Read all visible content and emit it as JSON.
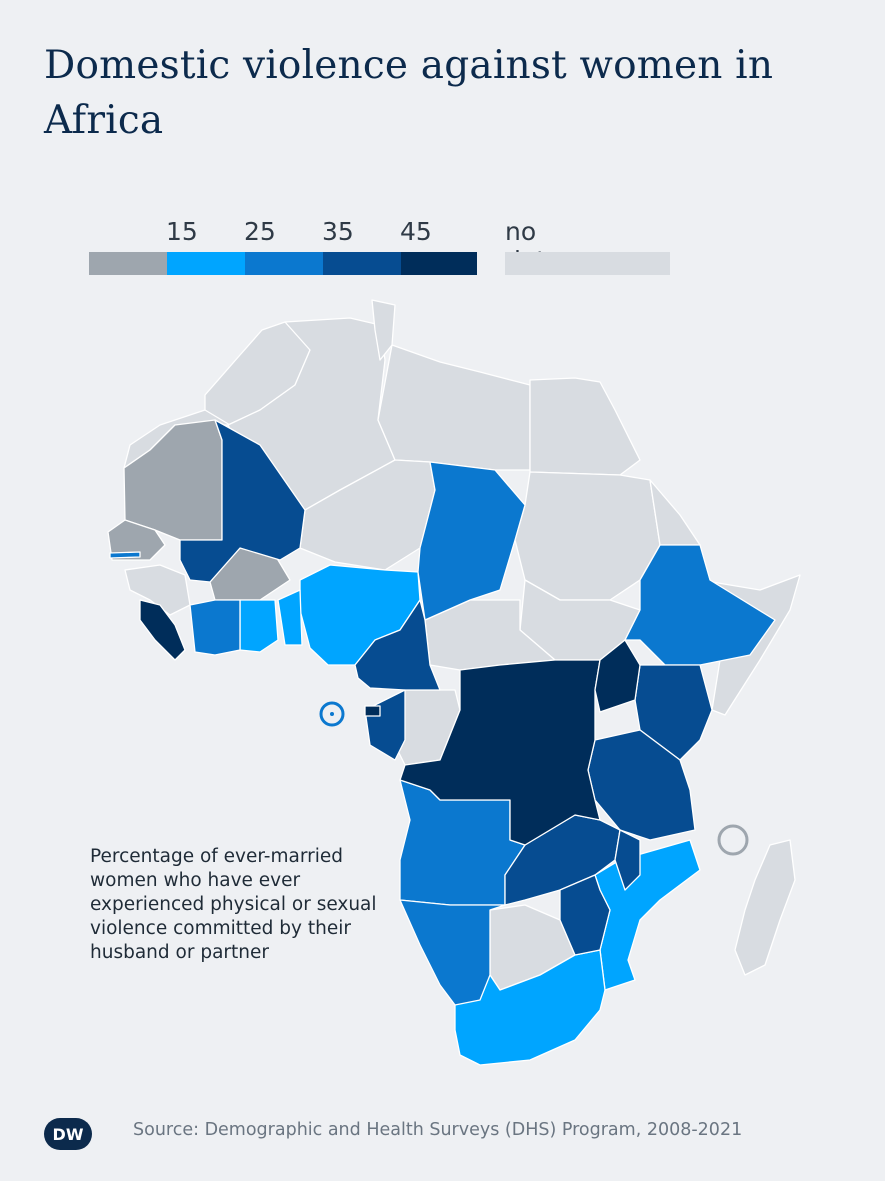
{
  "title": "Domestic violence against women in Africa",
  "legend": {
    "ticks": [
      "15",
      "25",
      "35",
      "45"
    ],
    "bins": [
      {
        "range": "<15",
        "color": "#9ea6ae"
      },
      {
        "range": "15-25",
        "color": "#00a5ff"
      },
      {
        "range": "25-35",
        "color": "#0b78cf"
      },
      {
        "range": "35-45",
        "color": "#064c91"
      },
      {
        "range": ">45",
        "color": "#002d5a"
      }
    ],
    "no_data_label": "no data",
    "no_data_color": "#d8dce1"
  },
  "description": "Percentage of ever-married women who have ever experienced physical or sexual violence committed by their husband or partner",
  "source": "Source: Demographic and Health Surveys (DHS) Program, 2008-2021",
  "logo_text": "DW",
  "map_colors": {
    "no_data": "#d8dce1",
    "border": "#ffffff"
  }
}
